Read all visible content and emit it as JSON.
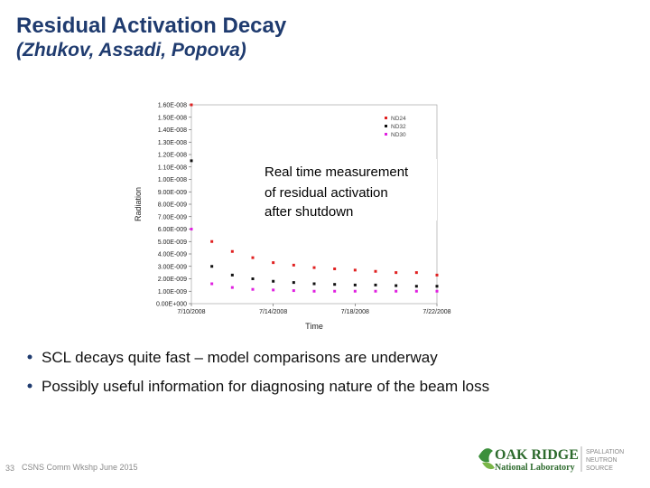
{
  "slide": {
    "title": "Residual Activation Decay",
    "subtitle": "(Zhukov, Assadi, Popova)",
    "annotation": [
      "Real time measurement",
      "of residual activation",
      "after shutdown"
    ],
    "bullets": [
      "SCL decays quite fast – model comparisons are underway",
      "Possibly useful information for diagnosing nature of the beam loss"
    ],
    "footer": {
      "page": "33",
      "text": "CSNS Comm Wkshp June 2015"
    },
    "logo": {
      "name": "OAK RIDGE",
      "lab": "National Laboratory",
      "sns": [
        "SPALLATION",
        "NEUTRON",
        "SOURCE"
      ]
    }
  },
  "chart_data": {
    "type": "scatter",
    "xlabel": "Time",
    "ylabel": "Radiation",
    "x": [
      "7/10/2008",
      "7/11/2008",
      "7/12/2008",
      "7/13/2008",
      "7/14/2008",
      "7/15/2008",
      "7/16/2008",
      "7/17/2008",
      "7/18/2008",
      "7/19/2008",
      "7/20/2008",
      "7/21/2008",
      "7/22/2008"
    ],
    "xlim": [
      "7/10/2008",
      "7/22/2008"
    ],
    "xticks": [
      "7/10/2008",
      "7/14/2008",
      "7/18/2008",
      "7/22/2008"
    ],
    "ylim": [
      0,
      1.6e-08
    ],
    "yticks": [
      {
        "value": 0,
        "label": "0.00E+000"
      },
      {
        "value": 1e-09,
        "label": "1.00E-009"
      },
      {
        "value": 2e-09,
        "label": "2.00E-009"
      },
      {
        "value": 3e-09,
        "label": "3.00E-009"
      },
      {
        "value": 4e-09,
        "label": "4.00E-009"
      },
      {
        "value": 5e-09,
        "label": "5.00E-009"
      },
      {
        "value": 6e-09,
        "label": "6.00E-009"
      },
      {
        "value": 7e-09,
        "label": "7.00E-009"
      },
      {
        "value": 8e-09,
        "label": "8.00E-009"
      },
      {
        "value": 9e-09,
        "label": "9.00E-009"
      },
      {
        "value": 1e-08,
        "label": "1.00E-008"
      },
      {
        "value": 1.1e-08,
        "label": "1.10E-008"
      },
      {
        "value": 1.2e-08,
        "label": "1.20E-008"
      },
      {
        "value": 1.3e-08,
        "label": "1.30E-008"
      },
      {
        "value": 1.4e-08,
        "label": "1.40E-008"
      },
      {
        "value": 1.5e-08,
        "label": "1.50E-008"
      },
      {
        "value": 1.6e-08,
        "label": "1.60E-008"
      }
    ],
    "legend": "upper right",
    "series": [
      {
        "name": "ND24",
        "color": "#e02020",
        "values": [
          1.6e-08,
          5e-09,
          4.2e-09,
          3.7e-09,
          3.3e-09,
          3.1e-09,
          2.9e-09,
          2.8e-09,
          2.7e-09,
          2.6e-09,
          2.5e-09,
          2.5e-09,
          2.3e-09
        ]
      },
      {
        "name": "ND32",
        "color": "#111111",
        "values": [
          1.15e-08,
          3e-09,
          2.3e-09,
          2e-09,
          1.8e-09,
          1.7e-09,
          1.6e-09,
          1.55e-09,
          1.5e-09,
          1.5e-09,
          1.45e-09,
          1.4e-09,
          1.4e-09
        ]
      },
      {
        "name": "ND30",
        "color": "#e020e0",
        "values": [
          6e-09,
          1.6e-09,
          1.3e-09,
          1.15e-09,
          1.1e-09,
          1.05e-09,
          1e-09,
          1e-09,
          1e-09,
          1e-09,
          1e-09,
          1e-09,
          1e-09
        ]
      }
    ]
  }
}
